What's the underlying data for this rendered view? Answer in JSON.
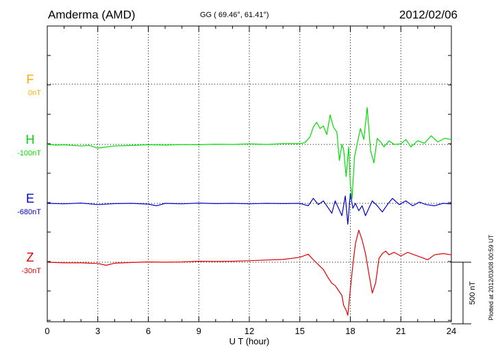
{
  "header": {
    "station": "Amderma (AMD)",
    "coords": "GG ( 69.46°,  61.41°)",
    "date": "2012/02/06"
  },
  "footer_note": "Plotted at 2012/03/08 00:59 UT",
  "chart_data": {
    "type": "line",
    "xlabel": "U T (hour)",
    "xlim": [
      0,
      24
    ],
    "x_ticks": [
      "0",
      "3",
      "6",
      "9",
      "12",
      "15",
      "18",
      "21",
      "24"
    ],
    "scale_bar": "500 nT",
    "grid": true,
    "series": [
      {
        "name": "F",
        "baseline": "0nT",
        "color": "#ffaa00",
        "t": [],
        "values": []
      },
      {
        "name": "H",
        "baseline": "-100nT",
        "color": "#00dd00",
        "t": [
          0,
          0.5,
          1,
          1.5,
          2,
          2.5,
          3,
          3.5,
          4,
          5,
          6,
          7,
          8,
          9,
          10,
          11,
          12,
          13,
          14,
          15,
          15.3,
          15.6,
          15.8,
          16.0,
          16.2,
          16.4,
          16.6,
          16.8,
          17.0,
          17.2,
          17.35,
          17.5,
          17.6,
          17.75,
          17.9,
          18.0,
          18.1,
          18.25,
          18.4,
          18.6,
          18.8,
          19.0,
          19.2,
          19.4,
          19.6,
          19.8,
          20.0,
          20.3,
          20.6,
          21.0,
          21.3,
          21.6,
          22.0,
          22.4,
          22.8,
          23.2,
          23.6,
          24.0
        ],
        "values": [
          -100,
          -105,
          -103,
          -107,
          -112,
          -108,
          -130,
          -120,
          -112,
          -108,
          -102,
          -105,
          -101,
          -102,
          -98,
          -100,
          -95,
          -100,
          -94,
          -94,
          -85,
          -40,
          40,
          80,
          30,
          50,
          -20,
          140,
          40,
          0,
          -230,
          -100,
          -140,
          -360,
          -120,
          -420,
          -540,
          -200,
          -100,
          30,
          -60,
          200,
          -150,
          -250,
          -50,
          -80,
          -120,
          -70,
          -100,
          -95,
          -60,
          -120,
          -70,
          -90,
          -30,
          -80,
          -50,
          -60
        ]
      },
      {
        "name": "E",
        "baseline": "-680nT",
        "color": "#0000cc",
        "t": [
          0,
          1,
          2,
          3,
          4,
          5,
          6,
          6.5,
          7,
          8,
          9,
          10,
          11,
          12,
          13,
          14,
          15,
          15.5,
          15.8,
          16.1,
          16.4,
          16.7,
          16.9,
          17.1,
          17.3,
          17.5,
          17.7,
          17.85,
          18.0,
          18.15,
          18.3,
          18.5,
          18.7,
          18.9,
          19.1,
          19.3,
          19.6,
          19.9,
          20.2,
          20.5,
          20.9,
          21.3,
          21.7,
          22.1,
          22.5,
          23.0,
          23.5,
          24.0
        ],
        "values": [
          -680,
          -684,
          -678,
          -690,
          -682,
          -680,
          -686,
          -700,
          -680,
          -684,
          -678,
          -682,
          -680,
          -684,
          -680,
          -682,
          -680,
          -700,
          -640,
          -690,
          -660,
          -720,
          -760,
          -660,
          -720,
          -780,
          -620,
          -850,
          -600,
          -720,
          -680,
          -740,
          -700,
          -780,
          -720,
          -660,
          -700,
          -750,
          -690,
          -640,
          -690,
          -660,
          -700,
          -670,
          -690,
          -700,
          -680,
          -685
        ]
      },
      {
        "name": "Z",
        "baseline": "-30nT",
        "color": "#dd0000",
        "t": [
          0,
          1,
          2,
          3,
          3.5,
          4,
          5,
          6,
          7,
          8,
          9,
          10,
          11,
          12,
          13,
          14,
          15,
          15.5,
          15.8,
          16.1,
          16.4,
          16.7,
          16.9,
          17.1,
          17.3,
          17.5,
          17.6,
          17.75,
          17.85,
          18.0,
          18.15,
          18.3,
          18.5,
          18.7,
          18.9,
          19.1,
          19.3,
          19.5,
          19.7,
          19.9,
          20.1,
          20.3,
          20.6,
          21.0,
          21.4,
          21.8,
          22.2,
          22.6,
          23.0,
          23.5,
          24.0
        ],
        "values": [
          -30,
          -35,
          -35,
          -40,
          -55,
          -38,
          -32,
          -28,
          -30,
          -28,
          -22,
          -24,
          -22,
          -18,
          -12,
          -8,
          10,
          35,
          -10,
          -50,
          -90,
          -160,
          -200,
          -220,
          -260,
          -300,
          -380,
          -420,
          -460,
          -250,
          -50,
          120,
          230,
          150,
          40,
          -120,
          -280,
          -200,
          0,
          40,
          60,
          30,
          50,
          20,
          50,
          30,
          10,
          -10,
          30,
          40,
          30
        ]
      }
    ]
  }
}
